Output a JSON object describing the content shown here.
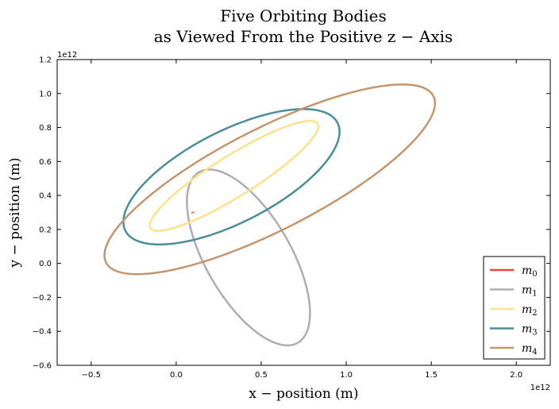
{
  "chart_data": {
    "type": "line",
    "title": [
      "Five Orbiting Bodies",
      "as Viewed From the Positive z − Axis"
    ],
    "xlabel": "x − position (m)",
    "ylabel": "y − position (m)",
    "x_offset_label": "1e12",
    "y_offset_label": "1e12",
    "xlim": [
      -0.7,
      2.2
    ],
    "ylim": [
      -0.6,
      1.2
    ],
    "xticks": [
      -0.5,
      0.0,
      0.5,
      1.0,
      1.5,
      2.0
    ],
    "xtick_labels": [
      "−0.5",
      "0.0",
      "0.5",
      "1.0",
      "1.5",
      "2.0"
    ],
    "yticks": [
      -0.6,
      -0.4,
      -0.2,
      0.0,
      0.2,
      0.4,
      0.6,
      0.8,
      1.0,
      1.2
    ],
    "ytick_labels": [
      "−0.6",
      "−0.4",
      "−0.2",
      "0.0",
      "0.2",
      "0.4",
      "0.6",
      "0.8",
      "1.0",
      "1.2"
    ],
    "grid": false,
    "legend_position": "bottom-right",
    "series": [
      {
        "name": "m",
        "sub": "0",
        "color": "#e8473a",
        "x": [
          0.09,
          0.105
        ],
        "y": [
          0.297,
          0.303
        ]
      },
      {
        "name": "m",
        "sub": "1",
        "color": "#aeadb3",
        "ellipse": {
          "center": [
            0.425,
            0.035
          ],
          "semi_major": 0.58,
          "semi_minor": 0.25,
          "angle_deg": -60
        }
      },
      {
        "name": "m",
        "sub": "2",
        "color": "#fde28c",
        "ellipse": {
          "center": [
            0.34,
            0.515
          ],
          "semi_major": 0.58,
          "semi_minor": 0.12,
          "angle_deg": 32
        }
      },
      {
        "name": "m",
        "sub": "3",
        "color": "#4a8e98",
        "ellipse": {
          "center": [
            0.325,
            0.51
          ],
          "semi_major": 0.7,
          "semi_minor": 0.27,
          "angle_deg": 27
        }
      },
      {
        "name": "m",
        "sub": "4",
        "color": "#c39670",
        "ellipse": {
          "center": [
            0.55,
            0.495
          ],
          "semi_major": 1.08,
          "semi_minor": 0.3,
          "angle_deg": 27
        }
      }
    ]
  }
}
